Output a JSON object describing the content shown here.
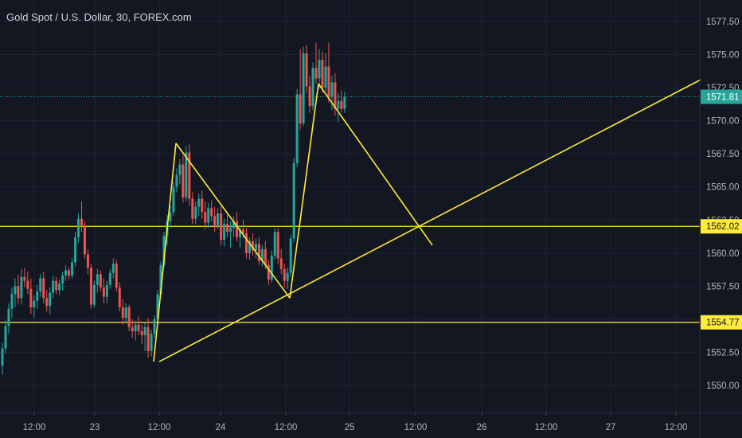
{
  "chart_data": {
    "type": "candlestick",
    "title": "Gold Spot / U.S. Dollar, 30, FOREX.com",
    "y_ticks": [
      "1550.00",
      "1552.50",
      "1555.00",
      "1557.50",
      "1560.00",
      "1562.50",
      "1565.00",
      "1567.50",
      "1570.00",
      "1572.50",
      "1575.00",
      "1577.50"
    ],
    "y_tick_values": [
      1550,
      1552.5,
      1555,
      1557.5,
      1560,
      1562.5,
      1565,
      1567.5,
      1570,
      1572.5,
      1575,
      1577.5
    ],
    "x_ticks": [
      "12:00",
      "23",
      "12:00",
      "24",
      "12:00",
      "25",
      "12:00",
      "26",
      "12:00",
      "27",
      "12:00"
    ],
    "ylim": [
      1548.5,
      1579.2
    ],
    "last_price": {
      "label": "1571.81",
      "value": 1571.81,
      "color": "#26a69a"
    },
    "horizontal_lines": [
      {
        "label": "1562.02",
        "value": 1562.02,
        "color": "#ffeb3b"
      },
      {
        "label": "1554.77",
        "value": 1554.77,
        "color": "#ffeb3b"
      }
    ],
    "trend_lines": [
      {
        "name": "rising-trendline",
        "points": [
          [
            200,
            1551.8
          ],
          [
            880,
            1573.1
          ]
        ]
      },
      {
        "name": "zigzag-1",
        "points": [
          [
            193,
            1551.8
          ],
          [
            221,
            1568.3
          ]
        ]
      },
      {
        "name": "zigzag-2",
        "points": [
          [
            221,
            1568.3
          ],
          [
            364,
            1556.6
          ]
        ]
      },
      {
        "name": "zigzag-3",
        "points": [
          [
            364,
            1556.6
          ],
          [
            400,
            1572.8
          ]
        ]
      },
      {
        "name": "zigzag-4",
        "points": [
          [
            400,
            1572.8
          ],
          [
            543,
            1560.6
          ]
        ]
      }
    ],
    "candles": [
      [
        1551.5,
        1553.2,
        1550.8,
        1552.8
      ],
      [
        1552.8,
        1554.9,
        1552.4,
        1554.5
      ],
      [
        1554.5,
        1556.2,
        1553.9,
        1555.8
      ],
      [
        1555.8,
        1557.4,
        1555.1,
        1556.9
      ],
      [
        1556.9,
        1558.1,
        1555.9,
        1557.5
      ],
      [
        1557.5,
        1558.4,
        1556.2,
        1556.6
      ],
      [
        1556.6,
        1558.8,
        1556.1,
        1558.2
      ],
      [
        1558.2,
        1558.9,
        1557.4,
        1557.9
      ],
      [
        1557.9,
        1558.6,
        1556.9,
        1557.3
      ],
      [
        1557.3,
        1558.1,
        1555.4,
        1555.9
      ],
      [
        1555.9,
        1556.8,
        1555.1,
        1556.4
      ],
      [
        1556.4,
        1557.6,
        1555.8,
        1557.1
      ],
      [
        1557.1,
        1558.4,
        1556.7,
        1558.1
      ],
      [
        1558.1,
        1558.6,
        1556.2,
        1556.6
      ],
      [
        1556.6,
        1557.2,
        1555.6,
        1556.0
      ],
      [
        1556.0,
        1557.4,
        1555.4,
        1557.0
      ],
      [
        1557.0,
        1558.3,
        1556.6,
        1557.9
      ],
      [
        1557.9,
        1558.2,
        1556.9,
        1557.2
      ],
      [
        1557.2,
        1558.0,
        1556.8,
        1557.7
      ],
      [
        1557.7,
        1558.6,
        1557.2,
        1558.3
      ],
      [
        1558.3,
        1559.1,
        1557.9,
        1558.7
      ],
      [
        1558.7,
        1558.9,
        1558.0,
        1558.3
      ],
      [
        1558.3,
        1559.6,
        1558.1,
        1559.3
      ],
      [
        1559.3,
        1561.6,
        1559.0,
        1561.2
      ],
      [
        1561.2,
        1563.0,
        1560.8,
        1562.6
      ],
      [
        1562.6,
        1563.9,
        1561.6,
        1562.1
      ],
      [
        1562.1,
        1562.4,
        1559.6,
        1559.9
      ],
      [
        1559.9,
        1560.3,
        1558.4,
        1558.9
      ],
      [
        1558.9,
        1559.2,
        1555.8,
        1556.1
      ],
      [
        1556.1,
        1557.9,
        1555.9,
        1557.6
      ],
      [
        1557.6,
        1558.8,
        1557.0,
        1558.4
      ],
      [
        1558.4,
        1558.7,
        1557.1,
        1557.4
      ],
      [
        1557.4,
        1558.1,
        1556.2,
        1556.7
      ],
      [
        1556.7,
        1557.9,
        1556.2,
        1557.6
      ],
      [
        1557.6,
        1558.8,
        1557.3,
        1558.5
      ],
      [
        1558.5,
        1559.6,
        1558.1,
        1559.2
      ],
      [
        1559.2,
        1559.5,
        1557.1,
        1557.4
      ],
      [
        1557.4,
        1557.8,
        1555.6,
        1555.9
      ],
      [
        1555.9,
        1556.5,
        1554.6,
        1555.1
      ],
      [
        1555.1,
        1556.2,
        1554.8,
        1555.9
      ],
      [
        1555.9,
        1556.1,
        1554.1,
        1554.4
      ],
      [
        1554.4,
        1555.0,
        1553.6,
        1554.1
      ],
      [
        1554.1,
        1554.9,
        1553.4,
        1554.6
      ],
      [
        1554.6,
        1555.2,
        1553.8,
        1554.1
      ],
      [
        1554.1,
        1554.6,
        1553.1,
        1553.8
      ],
      [
        1553.8,
        1554.7,
        1552.6,
        1554.4
      ],
      [
        1554.4,
        1555.1,
        1552.1,
        1552.6
      ],
      [
        1552.6,
        1554.2,
        1552.2,
        1553.9
      ],
      [
        1553.9,
        1555.3,
        1553.6,
        1555.0
      ],
      [
        1555.0,
        1557.2,
        1554.7,
        1556.9
      ],
      [
        1556.9,
        1559.4,
        1556.6,
        1559.1
      ],
      [
        1559.1,
        1561.6,
        1558.9,
        1561.3
      ],
      [
        1561.3,
        1562.9,
        1560.6,
        1562.4
      ],
      [
        1562.4,
        1563.6,
        1561.9,
        1563.1
      ],
      [
        1563.1,
        1565.4,
        1562.8,
        1565.0
      ],
      [
        1565.0,
        1566.4,
        1564.6,
        1565.9
      ],
      [
        1565.9,
        1567.1,
        1565.2,
        1566.7
      ],
      [
        1566.7,
        1567.4,
        1563.8,
        1564.2
      ],
      [
        1564.2,
        1568.1,
        1563.9,
        1567.6
      ],
      [
        1567.6,
        1568.2,
        1563.6,
        1564.1
      ],
      [
        1564.1,
        1564.6,
        1562.2,
        1562.6
      ],
      [
        1562.6,
        1563.9,
        1562.2,
        1563.5
      ],
      [
        1563.5,
        1564.5,
        1562.8,
        1564.1
      ],
      [
        1564.1,
        1564.7,
        1562.6,
        1563.1
      ],
      [
        1563.1,
        1563.9,
        1561.8,
        1562.3
      ],
      [
        1562.3,
        1563.8,
        1561.9,
        1563.4
      ],
      [
        1563.4,
        1564.0,
        1562.4,
        1562.8
      ],
      [
        1562.8,
        1563.5,
        1561.6,
        1562.1
      ],
      [
        1562.1,
        1563.4,
        1561.8,
        1563.0
      ],
      [
        1563.0,
        1563.5,
        1560.6,
        1561.0
      ],
      [
        1561.0,
        1562.6,
        1560.5,
        1562.2
      ],
      [
        1562.2,
        1562.9,
        1561.2,
        1561.6
      ],
      [
        1561.6,
        1562.4,
        1560.4,
        1561.9
      ],
      [
        1561.9,
        1562.8,
        1561.2,
        1562.4
      ],
      [
        1562.4,
        1563.1,
        1560.9,
        1561.2
      ],
      [
        1561.2,
        1562.1,
        1560.4,
        1561.8
      ],
      [
        1561.8,
        1562.5,
        1561.1,
        1561.5
      ],
      [
        1561.5,
        1561.9,
        1559.6,
        1560.0
      ],
      [
        1560.0,
        1561.2,
        1559.5,
        1560.9
      ],
      [
        1560.9,
        1561.5,
        1559.8,
        1560.2
      ],
      [
        1560.2,
        1561.1,
        1559.6,
        1560.7
      ],
      [
        1560.7,
        1561.2,
        1559.1,
        1559.4
      ],
      [
        1559.4,
        1560.6,
        1559.0,
        1560.3
      ],
      [
        1560.3,
        1560.9,
        1558.8,
        1559.1
      ],
      [
        1559.1,
        1559.5,
        1557.6,
        1558.0
      ],
      [
        1558.0,
        1560.2,
        1557.8,
        1559.8
      ],
      [
        1559.8,
        1561.9,
        1559.5,
        1561.6
      ],
      [
        1561.6,
        1561.9,
        1559.2,
        1559.6
      ],
      [
        1559.6,
        1560.3,
        1558.4,
        1558.8
      ],
      [
        1558.8,
        1559.2,
        1557.4,
        1557.9
      ],
      [
        1557.9,
        1558.9,
        1557.3,
        1558.5
      ],
      [
        1558.5,
        1561.4,
        1558.2,
        1561.1
      ],
      [
        1561.1,
        1567.2,
        1560.8,
        1566.8
      ],
      [
        1566.8,
        1572.4,
        1566.5,
        1572.0
      ],
      [
        1572.0,
        1575.4,
        1569.3,
        1569.8
      ],
      [
        1569.8,
        1575.6,
        1569.6,
        1575.1
      ],
      [
        1575.1,
        1575.7,
        1572.1,
        1572.6
      ],
      [
        1572.6,
        1573.4,
        1570.6,
        1571.1
      ],
      [
        1571.1,
        1574.4,
        1570.8,
        1574.0
      ],
      [
        1574.0,
        1575.9,
        1572.8,
        1573.2
      ],
      [
        1573.2,
        1575.4,
        1572.4,
        1574.6
      ],
      [
        1574.6,
        1575.2,
        1572.1,
        1572.5
      ],
      [
        1572.5,
        1575.1,
        1572.2,
        1574.1
      ],
      [
        1574.1,
        1575.9,
        1571.4,
        1571.8
      ],
      [
        1571.8,
        1573.4,
        1570.8,
        1572.9
      ],
      [
        1572.9,
        1573.6,
        1570.4,
        1570.9
      ],
      [
        1570.9,
        1572.1,
        1569.9,
        1571.5
      ],
      [
        1571.5,
        1572.3,
        1570.6,
        1570.9
      ],
      [
        1570.9,
        1572.2,
        1570.6,
        1571.81
      ]
    ],
    "up_color": "#26a69a",
    "down_color": "#ef5350"
  }
}
